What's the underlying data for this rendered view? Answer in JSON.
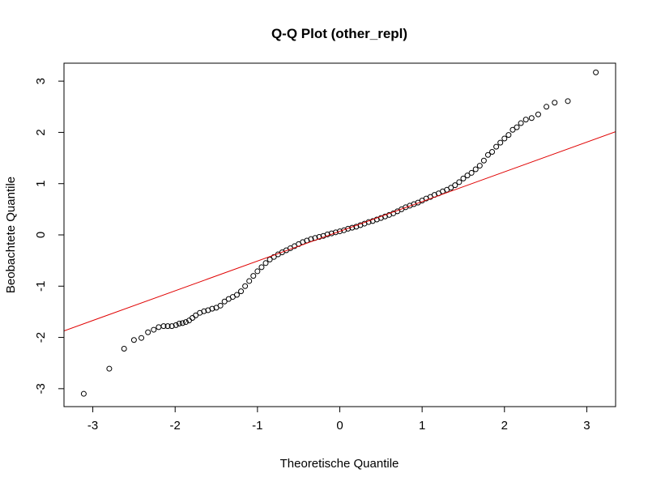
{
  "chart_data": {
    "type": "scatter",
    "title": "Q-Q Plot (other_repl)",
    "xlabel": "Theoretische Quantile",
    "ylabel": "Beobachtete Quantile",
    "xlim": [
      -3.35,
      3.35
    ],
    "ylim": [
      -3.35,
      3.35
    ],
    "x_ticks": [
      -3,
      -2,
      -1,
      0,
      1,
      2,
      3
    ],
    "y_ticks": [
      -3,
      -2,
      -1,
      0,
      1,
      2,
      3
    ],
    "tick_labels": [
      "-3",
      "-2",
      "-1",
      "0",
      "1",
      "2",
      "3"
    ],
    "point_style": "open-circle",
    "points": [
      [
        -3.11,
        -3.1
      ],
      [
        -2.8,
        -2.61
      ],
      [
        -2.62,
        -2.22
      ],
      [
        -2.5,
        -2.05
      ],
      [
        -2.41,
        -2.01
      ],
      [
        -2.33,
        -1.9
      ],
      [
        -2.26,
        -1.85
      ],
      [
        -2.2,
        -1.8
      ],
      [
        -2.14,
        -1.78
      ],
      [
        -2.09,
        -1.78
      ],
      [
        -2.04,
        -1.78
      ],
      [
        -1.99,
        -1.76
      ],
      [
        -1.95,
        -1.73
      ],
      [
        -1.91,
        -1.72
      ],
      [
        -1.87,
        -1.7
      ],
      [
        -1.83,
        -1.67
      ],
      [
        -1.79,
        -1.62
      ],
      [
        -1.75,
        -1.57
      ],
      [
        -1.7,
        -1.52
      ],
      [
        -1.65,
        -1.49
      ],
      [
        -1.6,
        -1.47
      ],
      [
        -1.55,
        -1.44
      ],
      [
        -1.5,
        -1.42
      ],
      [
        -1.45,
        -1.38
      ],
      [
        -1.4,
        -1.3
      ],
      [
        -1.35,
        -1.25
      ],
      [
        -1.3,
        -1.21
      ],
      [
        -1.25,
        -1.17
      ],
      [
        -1.2,
        -1.1
      ],
      [
        -1.15,
        -1.0
      ],
      [
        -1.1,
        -0.9
      ],
      [
        -1.05,
        -0.8
      ],
      [
        -1.0,
        -0.71
      ],
      [
        -0.95,
        -0.63
      ],
      [
        -0.9,
        -0.55
      ],
      [
        -0.85,
        -0.48
      ],
      [
        -0.8,
        -0.43
      ],
      [
        -0.75,
        -0.38
      ],
      [
        -0.7,
        -0.34
      ],
      [
        -0.65,
        -0.3
      ],
      [
        -0.6,
        -0.26
      ],
      [
        -0.55,
        -0.22
      ],
      [
        -0.5,
        -0.18
      ],
      [
        -0.45,
        -0.14
      ],
      [
        -0.4,
        -0.11
      ],
      [
        -0.35,
        -0.08
      ],
      [
        -0.3,
        -0.06
      ],
      [
        -0.25,
        -0.04
      ],
      [
        -0.2,
        -0.02
      ],
      [
        -0.15,
        0.01
      ],
      [
        -0.1,
        0.03
      ],
      [
        -0.05,
        0.05
      ],
      [
        0.0,
        0.07
      ],
      [
        0.05,
        0.09
      ],
      [
        0.1,
        0.12
      ],
      [
        0.15,
        0.14
      ],
      [
        0.2,
        0.16
      ],
      [
        0.25,
        0.19
      ],
      [
        0.3,
        0.22
      ],
      [
        0.35,
        0.25
      ],
      [
        0.4,
        0.27
      ],
      [
        0.45,
        0.3
      ],
      [
        0.5,
        0.33
      ],
      [
        0.55,
        0.36
      ],
      [
        0.6,
        0.39
      ],
      [
        0.65,
        0.42
      ],
      [
        0.7,
        0.46
      ],
      [
        0.75,
        0.5
      ],
      [
        0.8,
        0.54
      ],
      [
        0.85,
        0.57
      ],
      [
        0.9,
        0.6
      ],
      [
        0.95,
        0.63
      ],
      [
        1.0,
        0.67
      ],
      [
        1.05,
        0.71
      ],
      [
        1.1,
        0.74
      ],
      [
        1.15,
        0.78
      ],
      [
        1.2,
        0.81
      ],
      [
        1.25,
        0.85
      ],
      [
        1.3,
        0.88
      ],
      [
        1.35,
        0.92
      ],
      [
        1.4,
        0.97
      ],
      [
        1.45,
        1.03
      ],
      [
        1.5,
        1.1
      ],
      [
        1.55,
        1.16
      ],
      [
        1.6,
        1.21
      ],
      [
        1.65,
        1.28
      ],
      [
        1.7,
        1.35
      ],
      [
        1.75,
        1.45
      ],
      [
        1.8,
        1.56
      ],
      [
        1.85,
        1.62
      ],
      [
        1.9,
        1.72
      ],
      [
        1.95,
        1.8
      ],
      [
        2.0,
        1.88
      ],
      [
        2.05,
        1.95
      ],
      [
        2.1,
        2.05
      ],
      [
        2.15,
        2.1
      ],
      [
        2.2,
        2.18
      ],
      [
        2.26,
        2.25
      ],
      [
        2.33,
        2.28
      ],
      [
        2.41,
        2.35
      ],
      [
        2.51,
        2.5
      ],
      [
        2.61,
        2.58
      ],
      [
        2.77,
        2.61
      ],
      [
        3.11,
        3.17
      ]
    ],
    "reference_line": {
      "intercept": 0.07,
      "slope": 0.58
    },
    "colors": {
      "points": "#000000",
      "reference_line": "#e00000"
    }
  }
}
